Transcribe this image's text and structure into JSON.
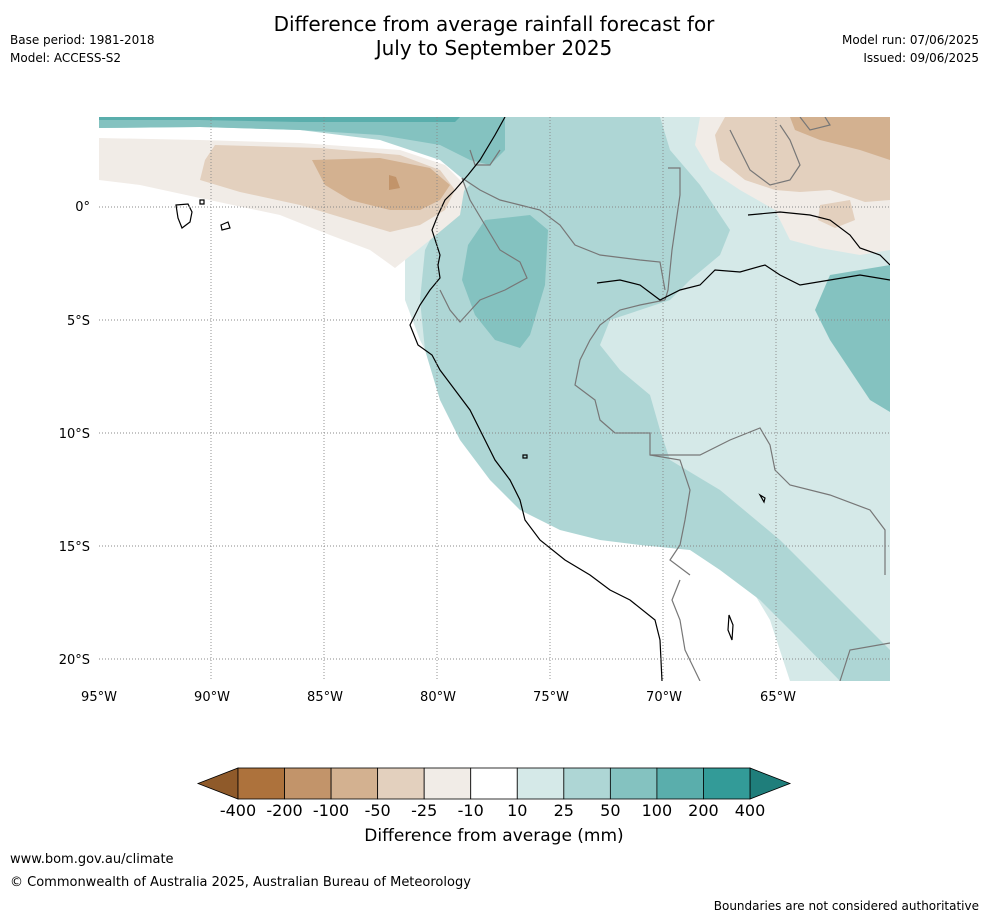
{
  "header": {
    "title_line1": "Difference from average rainfall forecast for",
    "title_line2": "July to September 2025",
    "base_period": "Base period: 1981-2018",
    "model": "Model: ACCESS-S2",
    "model_run": "Model run: 07/06/2025",
    "issued": "Issued: 09/06/2025"
  },
  "map": {
    "lat_labels": [
      "0°",
      "5°S",
      "10°S",
      "15°S",
      "20°S"
    ],
    "lon_labels": [
      "95°W",
      "90°W",
      "85°W",
      "80°W",
      "75°W",
      "70°W",
      "65°W"
    ]
  },
  "colorbar": {
    "tick_labels": [
      "-400",
      "-200",
      "-100",
      "-50",
      "-25",
      "-10",
      "10",
      "25",
      "50",
      "100",
      "200",
      "400"
    ],
    "colors": [
      "#8f5a2a",
      "#ad723c",
      "#c2946a",
      "#d3b190",
      "#e3d0be",
      "#f1ece7",
      "#ffffff",
      "#d5e9e8",
      "#aed6d5",
      "#84c2c0",
      "#5aaeac",
      "#339b98",
      "#1f7e7b"
    ],
    "label": "Difference from average (mm)"
  },
  "footer": {
    "url": "www.bom.gov.au/climate",
    "copyright": "© Commonwealth of Australia 2025, Australian Bureau of Meteorology",
    "disclaimer": "Boundaries are not considered authoritative"
  }
}
